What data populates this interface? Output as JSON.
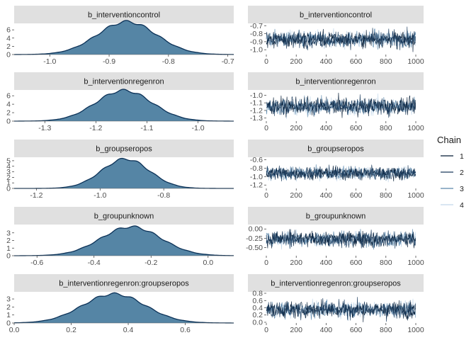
{
  "chart_data": {
    "type": "mcmc_dens_trace",
    "legend": {
      "title": "Chain",
      "placement": "right",
      "entries": [
        {
          "label": "1",
          "color": "#041b34"
        },
        {
          "label": "2",
          "color": "#1a3a5c"
        },
        {
          "label": "3",
          "color": "#5a87ab"
        },
        {
          "label": "4",
          "color": "#c2d7ea"
        }
      ]
    },
    "colors": {
      "density_fill": "#5585a5",
      "density_line": "#0b3157",
      "strip": "#e0e0e0"
    },
    "iterations": 1000,
    "trace_xticks": [
      0,
      200,
      400,
      600,
      800,
      1000
    ],
    "parameters": [
      {
        "name": "b_interventioncontrol",
        "mean": -0.87,
        "sd": 0.05,
        "dens_xlim": [
          -1.06,
          -0.69
        ],
        "dens_xticks": [
          "-1.0",
          "-0.9",
          "-0.8",
          "-0.7"
        ],
        "dens_xtick_values": [
          -1.0,
          -0.9,
          -0.8,
          -0.7
        ],
        "dens_ylim": [
          0,
          7.4
        ],
        "dens_yticks": [
          "0",
          "2",
          "4",
          "6"
        ],
        "dens_ytick_values": [
          0,
          2,
          4,
          6
        ],
        "trace_ylim": [
          -1.06,
          -0.68
        ],
        "trace_yticks": [
          "-1.0",
          "-0.9",
          "-0.8",
          "-0.7"
        ],
        "trace_ytick_values": [
          -1.0,
          -0.9,
          -0.8,
          -0.7
        ]
      },
      {
        "name": "b_interventionregenron",
        "mean": -1.145,
        "sd": 0.055,
        "dens_xlim": [
          -1.36,
          -0.93
        ],
        "dens_xticks": [
          "-1.3",
          "-1.2",
          "-1.1",
          "-1.0"
        ],
        "dens_xtick_values": [
          -1.3,
          -1.2,
          -1.1,
          -1.0
        ],
        "dens_ylim": [
          0,
          7.2
        ],
        "dens_yticks": [
          "0",
          "2",
          "4",
          "6"
        ],
        "dens_ytick_values": [
          0,
          2,
          4,
          6
        ],
        "trace_ylim": [
          -1.34,
          -0.94
        ],
        "trace_yticks": [
          "-1.0",
          "-1.1",
          "-1.2",
          "-1.3"
        ],
        "trace_ytick_values": [
          -1.0,
          -1.1,
          -1.2,
          -1.3
        ]
      },
      {
        "name": "b_groupseropos",
        "mean": -0.92,
        "sd": 0.075,
        "dens_xlim": [
          -1.27,
          -0.58
        ],
        "dens_xticks": [
          "-1.2",
          "-1.0",
          "-0.8"
        ],
        "dens_xtick_values": [
          -1.2,
          -1.0,
          -0.8
        ],
        "dens_ylim": [
          0,
          5.5
        ],
        "dens_yticks": [
          "0",
          "1",
          "2",
          "3",
          "4",
          "5"
        ],
        "dens_ytick_values": [
          0,
          1,
          2,
          3,
          4,
          5
        ],
        "trace_ylim": [
          -1.28,
          -0.56
        ],
        "trace_yticks": [
          "-0.6",
          "-0.8",
          "-1.0",
          "-1.2"
        ],
        "trace_ytick_values": [
          -0.6,
          -0.8,
          -1.0,
          -1.2
        ]
      },
      {
        "name": "b_groupunknown",
        "mean": -0.27,
        "sd": 0.105,
        "dens_xlim": [
          -0.68,
          0.09
        ],
        "dens_xticks": [
          "-0.6",
          "-0.4",
          "-0.2",
          "0.0"
        ],
        "dens_xtick_values": [
          -0.6,
          -0.4,
          -0.2,
          0.0
        ],
        "dens_ylim": [
          0,
          4.0
        ],
        "dens_yticks": [
          "0",
          "1",
          "2",
          "3"
        ],
        "dens_ytick_values": [
          0,
          1,
          2,
          3
        ],
        "trace_ylim": [
          -0.72,
          0.1
        ],
        "trace_yticks": [
          "0.00",
          "-0.25",
          "-0.50"
        ],
        "trace_ytick_values": [
          0.0,
          -0.25,
          -0.5
        ]
      },
      {
        "name": "b_interventionregenron:groupseropos",
        "mean": 0.35,
        "sd": 0.11,
        "dens_xlim": [
          0,
          0.77
        ],
        "dens_xticks": [
          "0.0",
          "0.2",
          "0.4",
          "0.6"
        ],
        "dens_xtick_values": [
          0.0,
          0.2,
          0.4,
          0.6
        ],
        "dens_ylim": [
          0,
          3.8
        ],
        "dens_yticks": [
          "0",
          "1",
          "2",
          "3"
        ],
        "dens_ytick_values": [
          0,
          1,
          2,
          3
        ],
        "trace_ylim": [
          -0.02,
          0.82
        ],
        "trace_yticks": [
          "0.8",
          "0.6",
          "0.4",
          "0.2",
          "0.0"
        ],
        "trace_ytick_values": [
          0.8,
          0.6,
          0.4,
          0.2,
          0.0
        ]
      }
    ]
  }
}
